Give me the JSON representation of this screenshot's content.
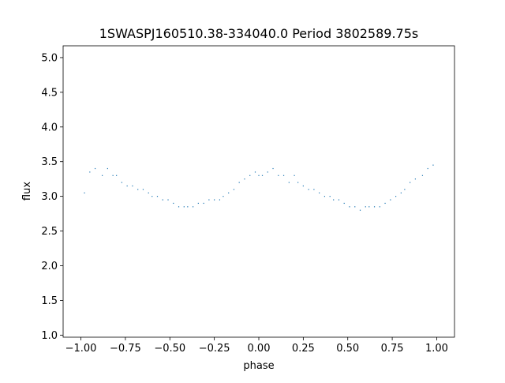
{
  "chart_data": {
    "type": "scatter",
    "title": "1SWASPJ160510.38-334040.0 Period 3802589.75s",
    "xlabel": "phase",
    "ylabel": "flux",
    "xlim": [
      -1.1,
      1.1
    ],
    "ylim": [
      0.97,
      5.17
    ],
    "x_ticks": [
      -1.0,
      -0.75,
      -0.5,
      -0.25,
      0.0,
      0.25,
      0.5,
      0.75,
      1.0
    ],
    "x_tick_labels": [
      "−1.00",
      "−0.75",
      "−0.50",
      "−0.25",
      "0.00",
      "0.25",
      "0.50",
      "0.75",
      "1.00"
    ],
    "y_ticks": [
      1.0,
      1.5,
      2.0,
      2.5,
      3.0,
      3.5,
      4.0,
      4.5,
      5.0
    ],
    "y_tick_labels": [
      "1.0",
      "1.5",
      "2.0",
      "2.5",
      "3.0",
      "3.5",
      "4.0",
      "4.5",
      "5.0"
    ],
    "grid": false,
    "marker_color": "#1f77b4",
    "series": [
      {
        "x": [
          -0.98,
          -0.95,
          -0.92,
          -0.88,
          -0.85,
          -0.82,
          -0.8,
          -0.77,
          -0.74,
          -0.71,
          -0.68,
          -0.65,
          -0.62,
          -0.6,
          -0.57,
          -0.54,
          -0.51,
          -0.48,
          -0.45,
          -0.42,
          -0.4,
          -0.37,
          -0.34,
          -0.31,
          -0.28,
          -0.25,
          -0.22,
          -0.2,
          -0.17,
          -0.14,
          -0.11,
          -0.08,
          -0.05,
          -0.02,
          0.0,
          0.02,
          0.05,
          0.08,
          0.11,
          0.14,
          0.17,
          0.2,
          0.22,
          0.25,
          0.28,
          0.31,
          0.34,
          0.37,
          0.4,
          0.42,
          0.45,
          0.48,
          0.51,
          0.54,
          0.57,
          0.6,
          0.62,
          0.65,
          0.68,
          0.71,
          0.74,
          0.77,
          0.8,
          0.82,
          0.85,
          0.88,
          0.92,
          0.95,
          0.98
        ],
        "y": [
          3.05,
          3.35,
          3.4,
          3.3,
          3.4,
          3.3,
          3.3,
          3.2,
          3.15,
          3.15,
          3.1,
          3.1,
          3.05,
          3.0,
          3.0,
          2.95,
          2.95,
          2.9,
          2.85,
          2.85,
          2.85,
          2.85,
          2.9,
          2.9,
          2.95,
          2.95,
          2.95,
          3.0,
          3.05,
          3.1,
          3.2,
          3.25,
          3.3,
          3.35,
          3.3,
          3.3,
          3.35,
          3.4,
          3.3,
          3.3,
          3.2,
          3.3,
          3.2,
          3.15,
          3.1,
          3.1,
          3.05,
          3.0,
          3.0,
          2.95,
          2.95,
          2.9,
          2.85,
          2.85,
          2.8,
          2.85,
          2.85,
          2.85,
          2.85,
          2.9,
          2.95,
          3.0,
          3.05,
          3.1,
          3.2,
          3.25,
          3.3,
          3.4,
          3.45
        ]
      }
    ]
  }
}
